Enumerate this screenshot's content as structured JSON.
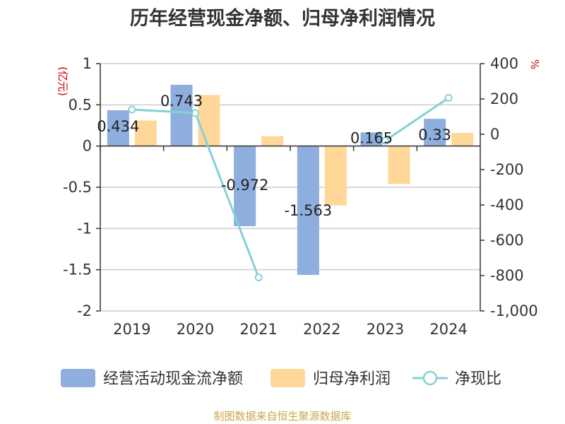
{
  "chart_data": {
    "type": "bar",
    "title": "历年经营现金净额、归母净利润情况",
    "categories": [
      "2019",
      "2020",
      "2021",
      "2022",
      "2023",
      "2024"
    ],
    "series": [
      {
        "name": "经营活动现金流净额",
        "type": "bar",
        "axis": "left",
        "color": "#8eaedd",
        "values": [
          0.434,
          0.743,
          -0.972,
          -1.563,
          0.165,
          0.33
        ],
        "labels": [
          "0.434",
          "0.743",
          "-0.972",
          "-1.563",
          "0.165",
          "0.33"
        ]
      },
      {
        "name": "归母净利润",
        "type": "bar",
        "axis": "left",
        "color": "#ffd899",
        "values": [
          0.31,
          0.62,
          0.12,
          -0.72,
          -0.46,
          0.16
        ]
      },
      {
        "name": "净现比",
        "type": "line",
        "axis": "right",
        "color": "#85d1d6",
        "values": [
          140,
          120,
          -810,
          null,
          -36,
          206
        ]
      }
    ],
    "left_axis": {
      "unit": "(亿元)",
      "min": -2,
      "max": 1,
      "ticks": [
        1,
        0.5,
        0,
        -0.5,
        -1,
        -1.5,
        -2
      ],
      "tick_labels": [
        "1",
        "0.5",
        "0",
        "-0.5",
        "-1",
        "-1.5",
        "-2"
      ]
    },
    "right_axis": {
      "unit": "%",
      "min": -1000,
      "max": 400,
      "ticks": [
        400,
        200,
        0,
        -200,
        -400,
        -600,
        -800,
        -1000
      ],
      "tick_labels": [
        "400",
        "200",
        "0",
        "-200",
        "-400",
        "-600",
        "-800",
        "-1,000"
      ]
    },
    "grid": true,
    "legend_position": "bottom",
    "source": "制图数据来自恒生聚源数据库"
  }
}
